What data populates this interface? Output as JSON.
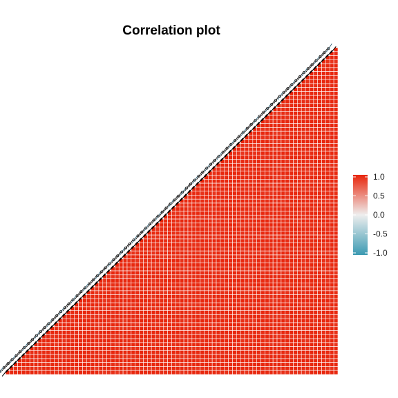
{
  "chart_data": {
    "type": "heatmap",
    "title": "Correlation plot",
    "xlabel": "",
    "ylabel": "",
    "variable_count": 82,
    "value_range": [
      -1,
      1
    ],
    "colors": {
      "low": "#3b9ab2",
      "mid": "#eeeeee",
      "high": "#e8240a",
      "cell_border": "#ffffff"
    },
    "correlation_model": {
      "diagonal_value": 1.0,
      "min_value": 0.32,
      "low_corr_center_fraction": [
        0.33,
        0.88
      ],
      "note_free": true
    },
    "legend": {
      "ticks": [
        1.0,
        0.5,
        0.0,
        -0.5,
        -1.0
      ],
      "tick_labels": [
        "1.0",
        "0.5",
        "0.0",
        "-0.5",
        "-1.0"
      ],
      "placement": "right"
    }
  }
}
